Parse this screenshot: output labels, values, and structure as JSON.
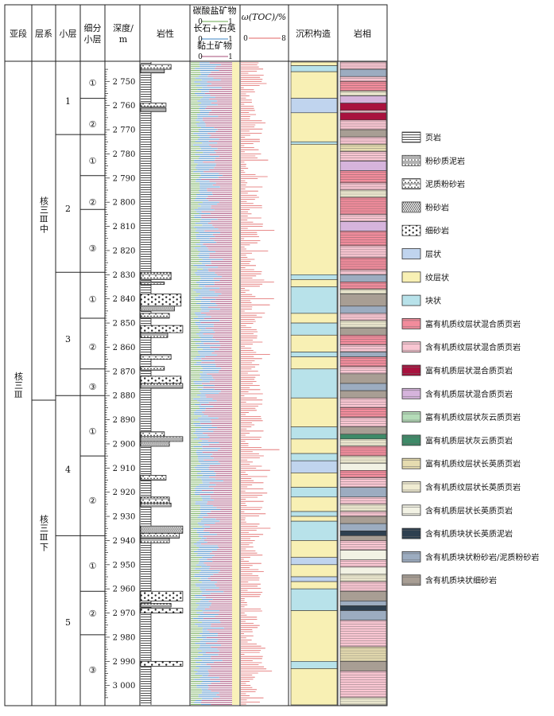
{
  "headers": {
    "substage": "亚段",
    "layer_system": "层系",
    "small_layer": "小层",
    "sub_layer_l1": "细分",
    "sub_layer_l2": "小层",
    "depth_l1": "深度/",
    "depth_l2": "m",
    "lithology": "岩性",
    "carbonate": "碳酸盐矿物",
    "feldspar_quartz": "长石+石英",
    "clay": "黏土矿物",
    "toc": "ω(TOC)/%",
    "structure": "沉积构造",
    "facies": "岩相"
  },
  "scales": {
    "mineral_min": "0",
    "mineral_max": "1",
    "toc_min": "0",
    "toc_max": "8"
  },
  "colors": {
    "carbonate": "#6aa84f",
    "feldspar_quartz": "#3d85c6",
    "clay": "#a64d79",
    "toc": "#e06666"
  },
  "substage": "核三Ⅲ",
  "layer_systems": [
    "核三Ⅲ中",
    "核三Ⅲ下"
  ],
  "small_layers": [
    "1",
    "2",
    "3",
    "4",
    "5"
  ],
  "sub_layers": [
    "①",
    "②",
    "①",
    "②",
    "③",
    "①",
    "②",
    "③",
    "①",
    "②",
    "①",
    "②",
    "③"
  ],
  "depth_ticks": [
    "2 750",
    "2 760",
    "2 770",
    "2 780",
    "2 790",
    "2 800",
    "2 810",
    "2 820",
    "2 830",
    "2 840",
    "2 850",
    "2 860",
    "2 870",
    "2 880",
    "2 890",
    "2 900",
    "2 910",
    "2 920",
    "2 930",
    "2 940",
    "2 950",
    "2 960",
    "2 970",
    "2 980",
    "2 990",
    "3 000"
  ],
  "legend": [
    {
      "label": "页岩",
      "icon": "shale-pattern"
    },
    {
      "label": "粉砂质泥岩",
      "icon": "silty-mudstone-pattern"
    },
    {
      "label": "泥质粉砂岩",
      "icon": "muddy-siltstone-pattern"
    },
    {
      "label": "粉砂岩",
      "icon": "siltstone-pattern"
    },
    {
      "label": "细砂岩",
      "icon": "fine-sandstone-pattern"
    },
    {
      "label": "层状",
      "icon": "layered-swatch",
      "color": "#c0d4ee"
    },
    {
      "label": "纹层状",
      "icon": "laminated-swatch",
      "color": "#f8f0b4"
    },
    {
      "label": "块状",
      "icon": "massive-swatch",
      "color": "#b8e2ea"
    },
    {
      "label": "富有机质纹层状混合质页岩",
      "icon": "facies-swatch",
      "color": "#f28c9c"
    },
    {
      "label": "含有机质纹层状混合质页岩",
      "icon": "facies-swatch",
      "color": "#f9c6d2"
    },
    {
      "label": "富有机质层状混合质页岩",
      "icon": "facies-swatch",
      "color": "#a8123e"
    },
    {
      "label": "含有机质层状混合质页岩",
      "icon": "facies-swatch",
      "color": "#d6b4dc"
    },
    {
      "label": "富有机质纹层状灰云质页岩",
      "icon": "facies-swatch",
      "color": "#b4dcb8"
    },
    {
      "label": "富有机质层状灰云质页岩",
      "icon": "facies-swatch",
      "color": "#3e8a68"
    },
    {
      "label": "富有机质纹层状长英质页岩",
      "icon": "facies-swatch",
      "color": "#e6dcb0"
    },
    {
      "label": "含有机质纹层状长英质页岩",
      "icon": "facies-swatch",
      "color": "#f0ecd2"
    },
    {
      "label": "含有机质层状长英质页岩",
      "icon": "facies-swatch",
      "color": "#f2f2e4"
    },
    {
      "label": "含有机质块状长英质泥岩",
      "icon": "facies-swatch",
      "color": "#2e4050"
    },
    {
      "label": "含有机质块状粉砂岩/泥质粉砂岩",
      "icon": "facies-swatch",
      "color": "#9cacc0"
    },
    {
      "label": "含有机质块状细砂岩",
      "icon": "facies-swatch",
      "color": "#a89e94"
    }
  ],
  "structure_column": [
    {
      "from": 2742,
      "to": 2743.5,
      "type": "纹层状"
    },
    {
      "from": 2743.5,
      "to": 2746,
      "type": "块状"
    },
    {
      "from": 2746,
      "to": 2757,
      "type": "纹层状"
    },
    {
      "from": 2757,
      "to": 2763,
      "type": "层状"
    },
    {
      "from": 2763,
      "to": 2775,
      "type": "纹层状"
    },
    {
      "from": 2775,
      "to": 2776,
      "type": "块状"
    },
    {
      "from": 2776,
      "to": 2830,
      "type": "纹层状"
    },
    {
      "from": 2830,
      "to": 2832,
      "type": "块状"
    },
    {
      "from": 2832,
      "to": 2835,
      "type": "纹层状"
    },
    {
      "from": 2835,
      "to": 2846,
      "type": "块状"
    },
    {
      "from": 2846,
      "to": 2850,
      "type": "纹层状"
    },
    {
      "from": 2850,
      "to": 2855,
      "type": "块状"
    },
    {
      "from": 2855,
      "to": 2862,
      "type": "纹层状"
    },
    {
      "from": 2862,
      "to": 2864,
      "type": "块状"
    },
    {
      "from": 2864,
      "to": 2869,
      "type": "纹层状"
    },
    {
      "from": 2869,
      "to": 2881,
      "type": "块状"
    },
    {
      "from": 2881,
      "to": 2893,
      "type": "纹层状"
    },
    {
      "from": 2893,
      "to": 2898,
      "type": "块状"
    },
    {
      "from": 2898,
      "to": 2904,
      "type": "纹层状"
    },
    {
      "from": 2904,
      "to": 2907,
      "type": "块状"
    },
    {
      "from": 2907,
      "to": 2912,
      "type": "层状"
    },
    {
      "from": 2912,
      "to": 2918,
      "type": "纹层状"
    },
    {
      "from": 2918,
      "to": 2922,
      "type": "块状"
    },
    {
      "from": 2922,
      "to": 2928,
      "type": "纹层状"
    },
    {
      "from": 2928,
      "to": 2930,
      "type": "块状"
    },
    {
      "from": 2930,
      "to": 2932,
      "type": "纹层状"
    },
    {
      "from": 2932,
      "to": 2940,
      "type": "块状"
    },
    {
      "from": 2940,
      "to": 2947,
      "type": "纹层状"
    },
    {
      "from": 2947,
      "to": 2950,
      "type": "层状"
    },
    {
      "from": 2950,
      "to": 2955,
      "type": "纹层状"
    },
    {
      "from": 2955,
      "to": 2957,
      "type": "层状"
    },
    {
      "from": 2957,
      "to": 2960,
      "type": "纹层状"
    },
    {
      "from": 2960,
      "to": 2969,
      "type": "块状"
    },
    {
      "from": 2969,
      "to": 2990,
      "type": "纹层状"
    },
    {
      "from": 2990,
      "to": 2993,
      "type": "块状"
    },
    {
      "from": 2993,
      "to": 3008,
      "type": "纹层状"
    }
  ],
  "facies_column": [
    {
      "from": 2742,
      "to": 2745,
      "facies": "含有机质纹层状混合质页岩"
    },
    {
      "from": 2745,
      "to": 2748,
      "facies": "含有机质块状粉砂岩/泥质粉砂岩"
    },
    {
      "from": 2748,
      "to": 2750,
      "facies": "含有机质纹层状混合质页岩"
    },
    {
      "from": 2750,
      "to": 2754,
      "facies": "富有机质纹层状混合质页岩"
    },
    {
      "from": 2754,
      "to": 2756,
      "facies": "含有机质纹层状长英质页岩"
    },
    {
      "from": 2756,
      "to": 2759,
      "facies": "含有机质层状混合质页岩"
    },
    {
      "from": 2759,
      "to": 2762,
      "facies": "富有机质层状混合质页岩"
    },
    {
      "from": 2762,
      "to": 2763,
      "facies": "含有机质纹层状混合质页岩"
    },
    {
      "from": 2763,
      "to": 2766,
      "facies": "富有机质层状混合质页岩"
    },
    {
      "from": 2766,
      "to": 2770,
      "facies": "含有机质纹层状混合质页岩"
    },
    {
      "from": 2770,
      "to": 2773,
      "facies": "含有机质块状细砂岩"
    },
    {
      "from": 2773,
      "to": 2776,
      "facies": "含有机质纹层状混合质页岩"
    },
    {
      "from": 2776,
      "to": 2779,
      "facies": "富有机质纹层状长英质页岩"
    },
    {
      "from": 2779,
      "to": 2783,
      "facies": "含有机质纹层状混合质页岩"
    },
    {
      "from": 2783,
      "to": 2787,
      "facies": "含有机质层状混合质页岩"
    },
    {
      "from": 2787,
      "to": 2792,
      "facies": "富有机质纹层状混合质页岩"
    },
    {
      "from": 2792,
      "to": 2795,
      "facies": "含有机质纹层状混合质页岩"
    },
    {
      "from": 2795,
      "to": 2798,
      "facies": "含有机质纹层状长英质页岩"
    },
    {
      "from": 2798,
      "to": 2805,
      "facies": "富有机质纹层状混合质页岩"
    },
    {
      "from": 2805,
      "to": 2808,
      "facies": "含有机质纹层状混合质页岩"
    },
    {
      "from": 2808,
      "to": 2812,
      "facies": "含有机质层状混合质页岩"
    },
    {
      "from": 2812,
      "to": 2818,
      "facies": "富有机质纹层状混合质页岩"
    },
    {
      "from": 2818,
      "to": 2823,
      "facies": "含有机质纹层状混合质页岩"
    },
    {
      "from": 2823,
      "to": 2828,
      "facies": "富有机质纹层状混合质页岩"
    },
    {
      "from": 2828,
      "to": 2830,
      "facies": "含有机质纹层状混合质页岩"
    },
    {
      "from": 2830,
      "to": 2833,
      "facies": "含有机质块状粉砂岩/泥质粉砂岩"
    },
    {
      "from": 2833,
      "to": 2836,
      "facies": "富有机质纹层状混合质页岩"
    },
    {
      "from": 2836,
      "to": 2838,
      "facies": "含有机质纹层状长英质页岩"
    },
    {
      "from": 2838,
      "to": 2843,
      "facies": "含有机质块状细砂岩"
    },
    {
      "from": 2843,
      "to": 2846,
      "facies": "含有机质块状粉砂岩/泥质粉砂岩"
    },
    {
      "from": 2846,
      "to": 2849,
      "facies": "含有机质纹层状混合质页岩"
    },
    {
      "from": 2849,
      "to": 2852,
      "facies": "含有机质纹层状长英质页岩"
    },
    {
      "from": 2852,
      "to": 2855,
      "facies": "含有机质块状细砂岩"
    },
    {
      "from": 2855,
      "to": 2859,
      "facies": "富有机质纹层状混合质页岩"
    },
    {
      "from": 2859,
      "to": 2862,
      "facies": "含有机质纹层状混合质页岩"
    },
    {
      "from": 2862,
      "to": 2864,
      "facies": "含有机质块状粉砂岩/泥质粉砂岩"
    },
    {
      "from": 2864,
      "to": 2868,
      "facies": "富有机质纹层状混合质页岩"
    },
    {
      "from": 2868,
      "to": 2871,
      "facies": "含有机质纹层状混合质页岩"
    },
    {
      "from": 2871,
      "to": 2875,
      "facies": "含有机质块状细砂岩"
    },
    {
      "from": 2875,
      "to": 2878,
      "facies": "含有机质块状粉砂岩/泥质粉砂岩"
    },
    {
      "from": 2878,
      "to": 2881,
      "facies": "含有机质块状细砂岩"
    },
    {
      "from": 2881,
      "to": 2885,
      "facies": "含有机质纹层状混合质页岩"
    },
    {
      "from": 2885,
      "to": 2889,
      "facies": "富有机质纹层状混合质页岩"
    },
    {
      "from": 2889,
      "to": 2893,
      "facies": "含有机质纹层状混合质页岩"
    },
    {
      "from": 2893,
      "to": 2896,
      "facies": "含有机质块状细砂岩"
    },
    {
      "from": 2896,
      "to": 2898,
      "facies": "富有机质层状灰云质页岩"
    },
    {
      "from": 2898,
      "to": 2901,
      "facies": "含有机质纹层状长英质页岩"
    },
    {
      "from": 2901,
      "to": 2905,
      "facies": "富有机质纹层状混合质页岩"
    },
    {
      "from": 2905,
      "to": 2908,
      "facies": "含有机质纹层状长英质页岩"
    },
    {
      "from": 2908,
      "to": 2911,
      "facies": "含有机质层状长英质页岩"
    },
    {
      "from": 2911,
      "to": 2914,
      "facies": "富有机质纹层状混合质页岩"
    },
    {
      "from": 2914,
      "to": 2918,
      "facies": "含有机质纹层状混合质页岩"
    },
    {
      "from": 2918,
      "to": 2922,
      "facies": "含有机质块状粉砂岩/泥质粉砂岩"
    },
    {
      "from": 2922,
      "to": 2925,
      "facies": "含有机质纹层状混合质页岩"
    },
    {
      "from": 2925,
      "to": 2928,
      "facies": "含有机质纹层状长英质页岩"
    },
    {
      "from": 2928,
      "to": 2930,
      "facies": "含有机质纹层状混合质页岩"
    },
    {
      "from": 2930,
      "to": 2933,
      "facies": "含有机质块状细砂岩"
    },
    {
      "from": 2933,
      "to": 2936,
      "facies": "含有机质块状粉砂岩/泥质粉砂岩"
    },
    {
      "from": 2936,
      "to": 2938,
      "facies": "含有机质块状长英质泥岩"
    },
    {
      "from": 2938,
      "to": 2940,
      "facies": "含有机质块状细砂岩"
    },
    {
      "from": 2940,
      "to": 2944,
      "facies": "含有机质纹层状混合质页岩"
    },
    {
      "from": 2944,
      "to": 2948,
      "facies": "含有机质层状长英质页岩"
    },
    {
      "from": 2948,
      "to": 2951,
      "facies": "含有机质纹层状混合质页岩"
    },
    {
      "from": 2951,
      "to": 2954,
      "facies": "含有机质层状长英质页岩"
    },
    {
      "from": 2954,
      "to": 2957,
      "facies": "含有机质纹层状长英质页岩"
    },
    {
      "from": 2957,
      "to": 2961,
      "facies": "含有机质纹层状混合质页岩"
    },
    {
      "from": 2961,
      "to": 2965,
      "facies": "含有机质块状细砂岩"
    },
    {
      "from": 2965,
      "to": 2967,
      "facies": "含有机质块状粉砂岩/泥质粉砂岩"
    },
    {
      "from": 2967,
      "to": 2969,
      "facies": "含有机质块状长英质泥岩"
    },
    {
      "from": 2969,
      "to": 2973,
      "facies": "含有机质块状粉砂岩/泥质粉砂岩"
    },
    {
      "from": 2973,
      "to": 2984,
      "facies": "含有机质纹层状混合质页岩"
    },
    {
      "from": 2984,
      "to": 2990,
      "facies": "富有机质纹层状长英质页岩"
    },
    {
      "from": 2990,
      "to": 2994,
      "facies": "含有机质块状细砂岩"
    },
    {
      "from": 2994,
      "to": 3005,
      "facies": "含有机质纹层状混合质页岩"
    },
    {
      "from": 3005,
      "to": 3008,
      "facies": "含有机质纹层状长英质页岩"
    }
  ],
  "lithology_beds": [
    {
      "from": 2743,
      "to": 2745,
      "type": "泥质粉砂岩",
      "w": 0.6
    },
    {
      "from": 2745,
      "to": 2746.5,
      "type": "粉砂质泥岩",
      "w": 0.4
    },
    {
      "from": 2759,
      "to": 2760.5,
      "type": "泥质粉砂岩",
      "w": 0.45
    },
    {
      "from": 2761,
      "to": 2762.5,
      "type": "粉砂质泥岩",
      "w": 0.45
    },
    {
      "from": 2829,
      "to": 2832,
      "type": "泥质粉砂岩",
      "w": 0.6
    },
    {
      "from": 2833,
      "to": 2834,
      "type": "粉砂质泥岩",
      "w": 0.4
    },
    {
      "from": 2838,
      "to": 2843,
      "type": "细砂岩",
      "w": 0.9
    },
    {
      "from": 2843,
      "to": 2845,
      "type": "粉砂岩",
      "w": 0.7
    },
    {
      "from": 2846,
      "to": 2848,
      "type": "泥质粉砂岩",
      "w": 0.55
    },
    {
      "from": 2851,
      "to": 2854,
      "type": "细砂岩",
      "w": 0.95
    },
    {
      "from": 2854,
      "to": 2856,
      "type": "粉砂质泥岩",
      "w": 0.5
    },
    {
      "from": 2863,
      "to": 2865,
      "type": "泥质粉砂岩",
      "w": 0.6
    },
    {
      "from": 2868,
      "to": 2869.5,
      "type": "泥质粉砂岩",
      "w": 0.4
    },
    {
      "from": 2872,
      "to": 2875,
      "type": "细砂岩",
      "w": 0.9
    },
    {
      "from": 2875,
      "to": 2877,
      "type": "粉砂质泥岩",
      "w": 0.95
    },
    {
      "from": 2895,
      "to": 2897,
      "type": "泥质粉砂岩",
      "w": 0.4
    },
    {
      "from": 2897,
      "to": 2899,
      "type": "粉砂质泥岩",
      "w": 0.95
    },
    {
      "from": 2899,
      "to": 2901,
      "type": "粉砂岩",
      "w": 0.55
    },
    {
      "from": 2913,
      "to": 2915,
      "type": "泥质粉砂岩",
      "w": 0.45
    },
    {
      "from": 2922,
      "to": 2924.5,
      "type": "泥质粉砂岩",
      "w": 0.55
    },
    {
      "from": 2924.5,
      "to": 2926,
      "type": "粉砂质泥岩",
      "w": 0.6
    },
    {
      "from": 2934,
      "to": 2937,
      "type": "粉砂岩",
      "w": 0.95
    },
    {
      "from": 2937,
      "to": 2939,
      "type": "泥质粉砂岩",
      "w": 0.85
    },
    {
      "from": 2939,
      "to": 2941,
      "type": "粉砂质泥岩",
      "w": 0.55
    },
    {
      "from": 2961,
      "to": 2965,
      "type": "细砂岩",
      "w": 0.95
    },
    {
      "from": 2966,
      "to": 2967.5,
      "type": "粉砂质泥岩",
      "w": 0.6
    },
    {
      "from": 2968,
      "to": 2970,
      "type": "细砂岩",
      "w": 0.95
    },
    {
      "from": 2990,
      "to": 2992,
      "type": "细砂岩",
      "w": 0.95
    }
  ]
}
